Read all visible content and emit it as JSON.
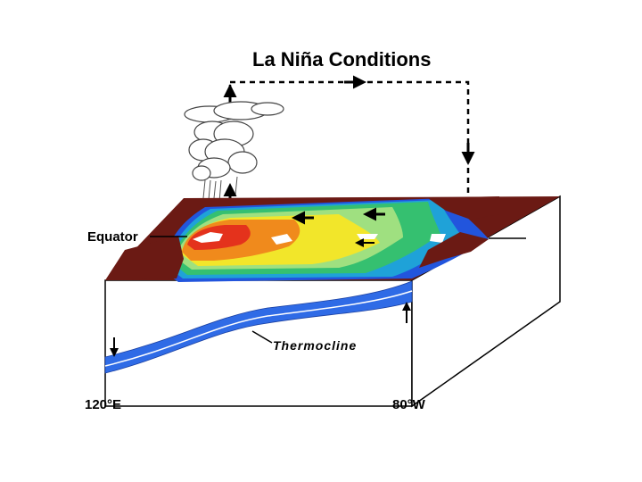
{
  "diagram": {
    "title": "La Niña Conditions",
    "equator_label": "Equator",
    "thermocline_label": "Thermocline",
    "west_longitude_label": "120°E",
    "east_longitude_label": "80°W"
  },
  "colors": {
    "land": "#6b1a14",
    "ocean_cold": "#2255dd",
    "ocean_cool": "#1fa2d8",
    "ocean_green": "#35c070",
    "ocean_mid": "#9fe080",
    "ocean_warm": "#f2e62a",
    "ocean_hot": "#f08a1c",
    "ocean_hottest": "#e4321c",
    "thermocline_band": "#2f6be6"
  },
  "icons": [
    "cloud-icon",
    "arrow-up-icon",
    "arrow-down-icon",
    "arrow-left-icon",
    "arrow-right-icon"
  ]
}
